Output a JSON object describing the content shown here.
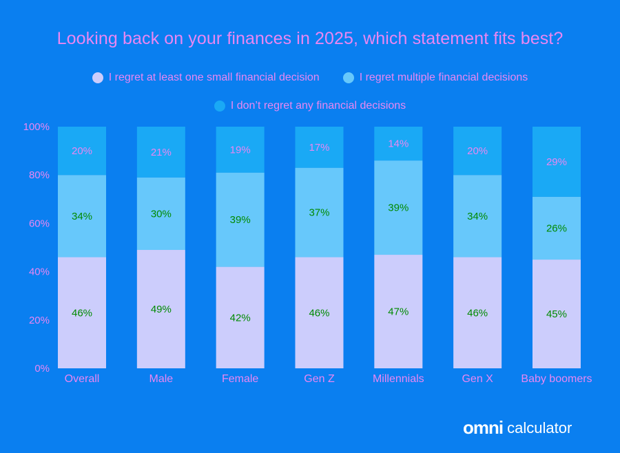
{
  "colors": {
    "background": "#0a7ff0",
    "text_pink": "#e987f2",
    "label_green": "#008a00",
    "series": [
      "#cccdfc",
      "#67c8fb",
      "#1aa9f5"
    ]
  },
  "brand": {
    "name": "omni",
    "suffix": "calculator"
  },
  "chart_data": {
    "type": "bar",
    "stacked": true,
    "title": "Looking back on your finances in 2025, which statement fits best?",
    "categories": [
      "Overall",
      "Male",
      "Female",
      "Gen Z",
      "Millennials",
      "Gen X",
      "Baby boomers"
    ],
    "series": [
      {
        "name": "I regret at least one small financial decision",
        "values": [
          46,
          49,
          42,
          46,
          47,
          46,
          45
        ],
        "color": "#cccdfc"
      },
      {
        "name": "I regret multiple financial decisions",
        "values": [
          34,
          30,
          39,
          37,
          39,
          34,
          26
        ],
        "color": "#67c8fb"
      },
      {
        "name": "I don’t regret any financial decisions",
        "values": [
          20,
          21,
          19,
          17,
          14,
          20,
          29
        ],
        "color": "#1aa9f5"
      }
    ],
    "yticks": [
      "0%",
      "20%",
      "40%",
      "60%",
      "80%",
      "100%"
    ],
    "ylim": [
      0,
      100
    ],
    "grid": false,
    "legend_position": "top",
    "data_labels": true
  }
}
